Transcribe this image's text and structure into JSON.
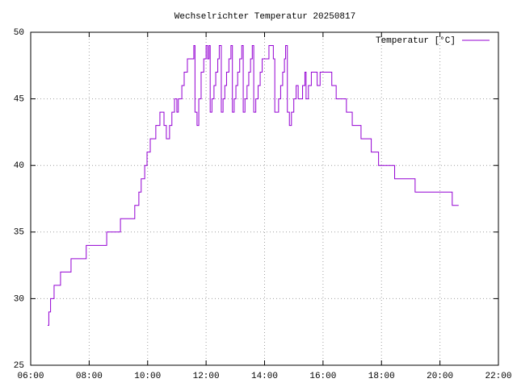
{
  "chart_data": {
    "type": "line",
    "title": "Wechselrichter Temperatur 20250817",
    "x": [
      6.58,
      6.62,
      6.68,
      6.8,
      7.02,
      7.38,
      7.9,
      8.6,
      9.07,
      9.56,
      9.7,
      9.78,
      9.9,
      9.98,
      10.09,
      10.28,
      10.42,
      10.56,
      10.64,
      10.75,
      10.83,
      10.92,
      11.0,
      11.05,
      11.17,
      11.25,
      11.36,
      11.58,
      11.62,
      11.69,
      11.75,
      11.83,
      11.92,
      12.0,
      12.05,
      12.1,
      12.14,
      12.2,
      12.27,
      12.33,
      12.4,
      12.45,
      12.52,
      12.58,
      12.64,
      12.7,
      12.78,
      12.85,
      12.9,
      12.96,
      13.02,
      13.08,
      13.15,
      13.22,
      13.27,
      13.33,
      13.4,
      13.46,
      13.52,
      13.58,
      13.63,
      13.7,
      13.78,
      13.85,
      13.92,
      14.15,
      14.3,
      14.35,
      14.48,
      14.55,
      14.62,
      14.68,
      14.72,
      14.78,
      14.85,
      14.92,
      15.0,
      15.08,
      15.15,
      15.3,
      15.38,
      15.42,
      15.5,
      15.6,
      15.8,
      15.9,
      16.3,
      16.45,
      16.8,
      17.0,
      17.3,
      17.65,
      17.9,
      18.45,
      19.15,
      20.42,
      20.64
    ],
    "series": [
      {
        "name": "Temperatur [°C]",
        "color": "#9400d3",
        "values": [
          28,
          29,
          30,
          31,
          32,
          33,
          34,
          35,
          36,
          37,
          38,
          39,
          40,
          41,
          42,
          43,
          44,
          43,
          42,
          43,
          44,
          45,
          44,
          45,
          46,
          47,
          48,
          49,
          44,
          43,
          45,
          47,
          48,
          49,
          48,
          49,
          44,
          45,
          46,
          47,
          48,
          49,
          44,
          45,
          46,
          47,
          48,
          49,
          44,
          45,
          46,
          47,
          48,
          49,
          44,
          45,
          46,
          47,
          48,
          49,
          44,
          45,
          46,
          47,
          48,
          49,
          48,
          44,
          45,
          46,
          47,
          48,
          49,
          44,
          43,
          44,
          45,
          46,
          45,
          46,
          47,
          45,
          46,
          47,
          46,
          47,
          46,
          45,
          44,
          43,
          42,
          41,
          40,
          39,
          38,
          37,
          37
        ]
      }
    ],
    "xlim": [
      6,
      22
    ],
    "ylim": [
      25,
      50
    ],
    "xticks": [
      {
        "value": 6,
        "label": "06:00"
      },
      {
        "value": 8,
        "label": "08:00"
      },
      {
        "value": 10,
        "label": "10:00"
      },
      {
        "value": 12,
        "label": "12:00"
      },
      {
        "value": 14,
        "label": "14:00"
      },
      {
        "value": 16,
        "label": "16:00"
      },
      {
        "value": 18,
        "label": "18:00"
      },
      {
        "value": 20,
        "label": "20:00"
      },
      {
        "value": 22,
        "label": "22:00"
      }
    ],
    "yticks": [
      25,
      30,
      35,
      40,
      45,
      50
    ],
    "grid": true,
    "legend": "top-right"
  }
}
